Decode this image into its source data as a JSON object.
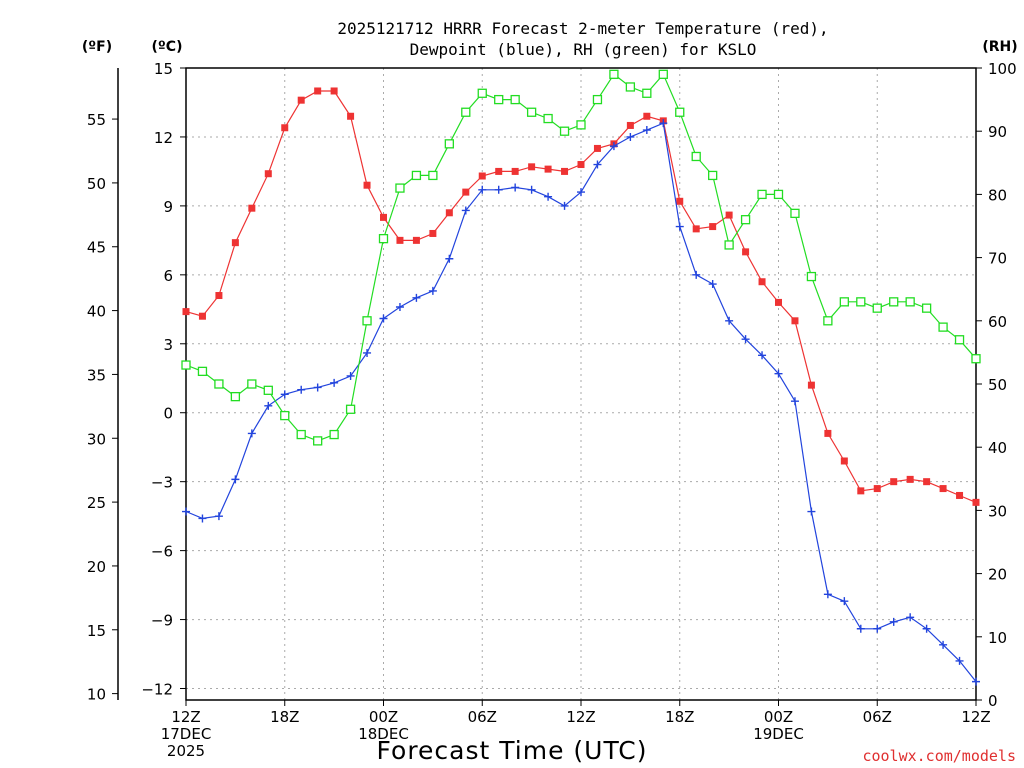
{
  "title_line1": "2025121712 HRRR Forecast 2-meter Temperature (red),",
  "title_line2": "Dewpoint (blue), RH (green) for KSLO",
  "units": {
    "fahrenheit": "(ºF)",
    "celsius": "(ºC)",
    "rh": "(RH)"
  },
  "xlabel": "Forecast Time (UTC)",
  "credit": "coolwx.com/models",
  "colors": {
    "temperature": "#ee3333",
    "dewpoint": "#2244dd",
    "rh": "#22dd22",
    "grid": "#aaaaaa"
  },
  "chart_data": {
    "type": "line",
    "grid": true,
    "x": [
      0,
      1,
      2,
      3,
      4,
      5,
      6,
      7,
      8,
      9,
      10,
      11,
      12,
      13,
      14,
      15,
      16,
      17,
      18,
      19,
      20,
      21,
      22,
      23,
      24,
      25,
      26,
      27,
      28,
      29,
      30,
      31,
      32,
      33,
      34,
      35,
      36,
      37,
      38,
      39,
      40,
      41,
      42,
      43,
      44,
      45,
      46,
      47,
      48
    ],
    "x_ticks": [
      {
        "pos": 0,
        "lines": [
          "12Z",
          "17DEC",
          "2025"
        ]
      },
      {
        "pos": 6,
        "lines": [
          "18Z"
        ]
      },
      {
        "pos": 12,
        "lines": [
          "00Z",
          "18DEC"
        ]
      },
      {
        "pos": 18,
        "lines": [
          "06Z"
        ]
      },
      {
        "pos": 24,
        "lines": [
          "12Z"
        ]
      },
      {
        "pos": 30,
        "lines": [
          "18Z"
        ]
      },
      {
        "pos": 36,
        "lines": [
          "00Z",
          "19DEC"
        ]
      },
      {
        "pos": 42,
        "lines": [
          "06Z"
        ]
      },
      {
        "pos": 48,
        "lines": [
          "12Z"
        ]
      }
    ],
    "y_celsius_range": [
      -12.5,
      15
    ],
    "y_celsius_ticks": [
      "15",
      "12",
      "9",
      "6",
      "3",
      "0",
      "−3",
      "−6",
      "−9",
      "−12"
    ],
    "y_fahrenheit_ticks": [
      "55",
      "50",
      "45",
      "40",
      "35",
      "30",
      "25",
      "20",
      "15",
      "10"
    ],
    "y_rh_range": [
      0,
      100
    ],
    "y_rh_ticks": [
      "100",
      "90",
      "80",
      "70",
      "60",
      "50",
      "40",
      "30",
      "20",
      "10",
      "0"
    ],
    "series": [
      {
        "key": "temperature",
        "unit": "°C",
        "marker": "filled-square",
        "values": [
          4.4,
          4.2,
          5.1,
          7.4,
          8.9,
          10.4,
          12.4,
          13.6,
          14.0,
          14.0,
          12.9,
          9.9,
          8.5,
          7.5,
          7.5,
          7.8,
          8.7,
          9.6,
          10.3,
          10.5,
          10.5,
          10.7,
          10.6,
          10.5,
          10.8,
          11.5,
          11.7,
          12.5,
          12.9,
          12.7,
          9.2,
          8.0,
          8.1,
          8.6,
          7.0,
          5.7,
          4.8,
          4.0,
          1.2,
          -0.9,
          -2.1,
          -3.4,
          -3.3,
          -3.0,
          -2.9,
          -3.0,
          -3.3,
          -3.6,
          -3.9
        ]
      },
      {
        "key": "dewpoint",
        "unit": "°C",
        "marker": "plus",
        "values": [
          -4.3,
          -4.6,
          -4.5,
          -2.9,
          -0.9,
          0.3,
          0.8,
          1.0,
          1.1,
          1.3,
          1.6,
          2.6,
          4.1,
          4.6,
          5.0,
          5.3,
          6.7,
          8.8,
          9.7,
          9.7,
          9.8,
          9.7,
          9.4,
          9.0,
          9.6,
          10.8,
          11.6,
          12.0,
          12.3,
          12.6,
          8.1,
          6.0,
          5.6,
          4.0,
          3.2,
          2.5,
          1.7,
          0.5,
          -4.3,
          -7.9,
          -8.2,
          -9.4,
          -9.4,
          -9.1,
          -8.9,
          -9.4,
          -10.1,
          -10.8,
          -11.7
        ]
      },
      {
        "key": "rh",
        "unit": "%",
        "marker": "open-square",
        "values": [
          53,
          52,
          50,
          48,
          50,
          49,
          45,
          42,
          41,
          42,
          46,
          60,
          73,
          81,
          83,
          83,
          88,
          93,
          96,
          95,
          95,
          93,
          92,
          90,
          91,
          95,
          99,
          97,
          96,
          99,
          93,
          86,
          83,
          72,
          76,
          80,
          80,
          77,
          67,
          60,
          63,
          63,
          62,
          63,
          63,
          62,
          59,
          57,
          54
        ]
      }
    ]
  }
}
